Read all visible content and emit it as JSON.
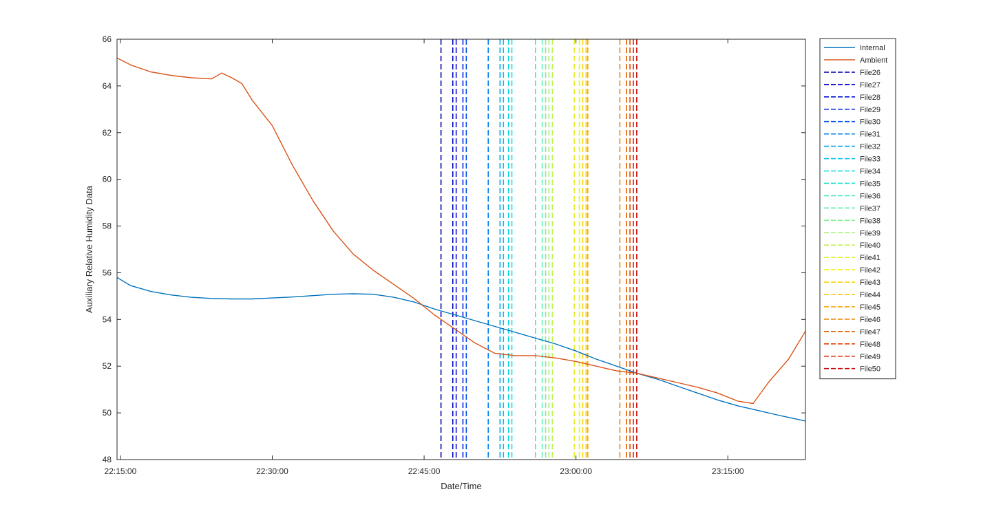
{
  "chart_data": {
    "type": "line",
    "xlabel": "Date/Time",
    "ylabel": "Auxiliary Relative Humidity Data",
    "xlim": [
      "22:14:40",
      "23:22:40"
    ],
    "ylim": [
      48,
      66
    ],
    "x_ticks": [
      "22:15:00",
      "22:30:00",
      "22:45:00",
      "23:00:00",
      "23:15:00"
    ],
    "y_ticks": [
      48,
      50,
      52,
      54,
      56,
      58,
      60,
      62,
      64,
      66
    ],
    "grid": false,
    "legend_position": "outside-right",
    "series": [
      {
        "name": "Internal",
        "style": "solid",
        "color": "#0072BD",
        "x": [
          "22:14:40",
          "22:16:00",
          "22:18:00",
          "22:20:00",
          "22:22:00",
          "22:24:00",
          "22:26:00",
          "22:28:00",
          "22:30:00",
          "22:32:00",
          "22:34:00",
          "22:36:00",
          "22:38:00",
          "22:40:00",
          "22:42:00",
          "22:44:00",
          "22:46:00",
          "22:48:00",
          "22:50:00",
          "22:52:00",
          "22:54:00",
          "22:56:00",
          "22:58:00",
          "23:00:00",
          "23:02:00",
          "23:04:00",
          "23:06:00",
          "23:08:00",
          "23:10:00",
          "23:12:00",
          "23:14:00",
          "23:16:00",
          "23:18:00",
          "23:20:00",
          "23:22:40"
        ],
        "y": [
          55.8,
          55.45,
          55.2,
          55.05,
          54.95,
          54.9,
          54.88,
          54.88,
          54.92,
          54.96,
          55.02,
          55.08,
          55.1,
          55.08,
          54.95,
          54.75,
          54.45,
          54.2,
          53.95,
          53.7,
          53.45,
          53.2,
          52.95,
          52.65,
          52.3,
          52.0,
          51.7,
          51.45,
          51.15,
          50.85,
          50.55,
          50.3,
          50.1,
          49.9,
          49.65
        ]
      },
      {
        "name": "Ambient",
        "style": "solid",
        "color": "#D95319",
        "x": [
          "22:14:40",
          "22:16:00",
          "22:18:00",
          "22:20:00",
          "22:22:00",
          "22:24:00",
          "22:25:00",
          "22:26:00",
          "22:27:00",
          "22:28:00",
          "22:30:00",
          "22:32:00",
          "22:34:00",
          "22:36:00",
          "22:38:00",
          "22:40:00",
          "22:42:00",
          "22:44:00",
          "22:46:00",
          "22:48:00",
          "22:50:00",
          "22:52:00",
          "22:54:00",
          "22:56:00",
          "22:58:00",
          "23:00:00",
          "23:02:00",
          "23:04:00",
          "23:06:00",
          "23:08:00",
          "23:10:00",
          "23:12:00",
          "23:14:00",
          "23:16:00",
          "23:17:30",
          "23:19:00",
          "23:21:00",
          "23:22:40"
        ],
        "y": [
          65.2,
          64.9,
          64.6,
          64.45,
          64.35,
          64.3,
          64.55,
          64.35,
          64.1,
          63.4,
          62.3,
          60.6,
          59.1,
          57.8,
          56.8,
          56.1,
          55.5,
          54.9,
          54.2,
          53.6,
          53.0,
          52.55,
          52.45,
          52.45,
          52.35,
          52.2,
          52.0,
          51.8,
          51.7,
          51.5,
          51.3,
          51.1,
          50.85,
          50.5,
          50.4,
          51.3,
          52.3,
          53.5
        ]
      }
    ],
    "markers": [
      {
        "name": "File26",
        "x": "22:46:40",
        "color": "#0000B0"
      },
      {
        "name": "File27",
        "x": "22:47:50",
        "color": "#0000C8"
      },
      {
        "name": "File28",
        "x": "22:48:10",
        "color": "#0010D8"
      },
      {
        "name": "File29",
        "x": "22:48:50",
        "color": "#0020E0"
      },
      {
        "name": "File30",
        "x": "22:49:10",
        "color": "#0050E8"
      },
      {
        "name": "File31",
        "x": "22:51:20",
        "color": "#0080F0"
      },
      {
        "name": "File32",
        "x": "22:52:30",
        "color": "#00A0F0"
      },
      {
        "name": "File33",
        "x": "22:52:50",
        "color": "#00C0F0"
      },
      {
        "name": "File34",
        "x": "22:53:20",
        "color": "#00D8E0"
      },
      {
        "name": "File35",
        "x": "22:53:40",
        "color": "#20E0D0"
      },
      {
        "name": "File36",
        "x": "22:56:00",
        "color": "#40E8C0"
      },
      {
        "name": "File37",
        "x": "22:56:40",
        "color": "#60F0B0"
      },
      {
        "name": "File38",
        "x": "22:57:00",
        "color": "#80F090"
      },
      {
        "name": "File39",
        "x": "22:57:20",
        "color": "#A0F070"
      },
      {
        "name": "File40",
        "x": "22:57:40",
        "color": "#C0F050"
      },
      {
        "name": "File41",
        "x": "22:59:50",
        "color": "#E0F030"
      },
      {
        "name": "File42",
        "x": "23:00:20",
        "color": "#F8F000"
      },
      {
        "name": "File43",
        "x": "23:00:40",
        "color": "#F8D800"
      },
      {
        "name": "File44",
        "x": "23:01:00",
        "color": "#F8C000"
      },
      {
        "name": "File45",
        "x": "23:01:10",
        "color": "#F8A800"
      },
      {
        "name": "File46",
        "x": "23:04:20",
        "color": "#F08800"
      },
      {
        "name": "File47",
        "x": "23:05:00",
        "color": "#E86000"
      },
      {
        "name": "File48",
        "x": "23:05:20",
        "color": "#E84000"
      },
      {
        "name": "File49",
        "x": "23:05:40",
        "color": "#E02000"
      },
      {
        "name": "File50",
        "x": "23:06:00",
        "color": "#C80000"
      }
    ]
  }
}
